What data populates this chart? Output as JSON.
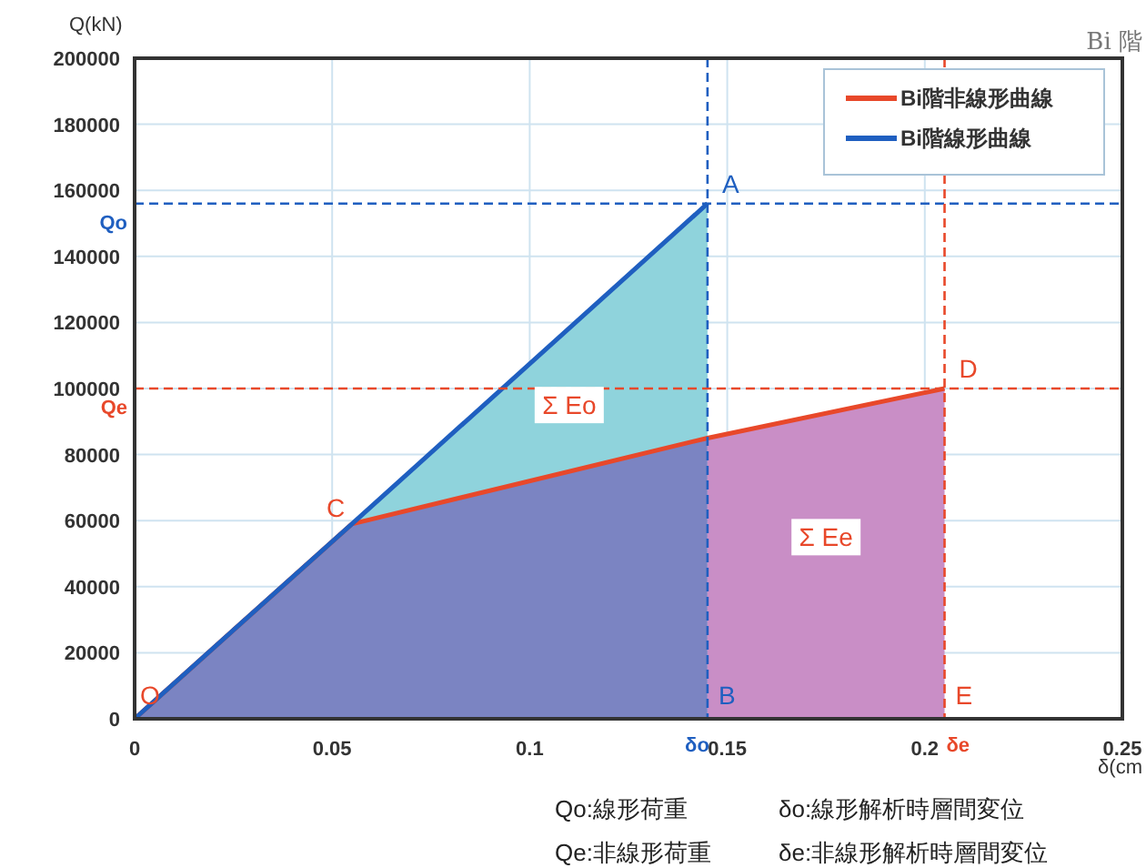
{
  "chart_data": {
    "type": "line",
    "subtitle": "Bi 階",
    "xlabel": "δ(cm",
    "ylabel": "Q(kN)",
    "xlim": [
      0,
      0.25
    ],
    "xticks": [
      0,
      0.05,
      0.1,
      0.15,
      0.2,
      0.25
    ],
    "ylim": [
      0,
      200000
    ],
    "yticks": [
      0,
      20000,
      40000,
      60000,
      80000,
      100000,
      120000,
      140000,
      160000,
      180000,
      200000
    ],
    "grid": true,
    "legend": "top right",
    "series": [
      {
        "type": "area",
        "color": "#7b84c2",
        "x": [
          0,
          0.055,
          0.145
        ],
        "values": [
          0,
          59000,
          85000
        ]
      },
      {
        "type": "area",
        "color": "#c98ec6",
        "x": [
          0.145,
          0.205
        ],
        "values": [
          85000,
          100000
        ]
      },
      {
        "name": "Bi階非線形曲線",
        "color": "#e8482a",
        "x": [
          0,
          0.055,
          0.145,
          0.205
        ],
        "values": [
          0,
          59000,
          85000,
          100000
        ]
      },
      {
        "name": "Bi階線形曲線",
        "color": "#1f5fc0",
        "x": [
          0,
          0.055,
          0.145
        ],
        "values": [
          0,
          59000,
          156000
        ],
        "lower": [
          0,
          59000,
          85000
        ],
        "upper": [
          0,
          59000,
          156000
        ]
      }
    ],
    "ref_lines": [
      {
        "axis": "y",
        "value": 156000,
        "label": "Qo",
        "color": "#1f5fc0",
        "line_style": "dashed"
      },
      {
        "axis": "y",
        "value": 100000,
        "label": "Qe",
        "color": "#e8482a",
        "line_style": "dashed"
      },
      {
        "axis": "x",
        "value": 0.145,
        "label": "δo",
        "color": "#1f5fc0",
        "line_style": "dashed"
      },
      {
        "axis": "x",
        "value": 0.205,
        "label": "δe",
        "color": "#e8482a",
        "line_style": "dashed"
      }
    ],
    "annotations": [
      {
        "text": "O",
        "x": 0,
        "y": 0
      },
      {
        "text": "C",
        "x": 0.055,
        "y": 59000
      },
      {
        "text": "A",
        "x": 0.145,
        "y": 156000
      },
      {
        "text": "B",
        "x": 0.145,
        "y": 0
      },
      {
        "text": "D",
        "x": 0.205,
        "y": 100000
      },
      {
        "text": "E",
        "x": 0.205,
        "y": 0
      },
      {
        "text": "Σ Eo",
        "x": 0.11,
        "y": 95000
      },
      {
        "text": "Σ Ee",
        "x": 0.175,
        "y": 55000
      },
      "Qo:線形荷重",
      "δo:線形解析時層間変位",
      "Qe:非線形荷重",
      "δe:非線形解析時層間変位"
    ]
  }
}
